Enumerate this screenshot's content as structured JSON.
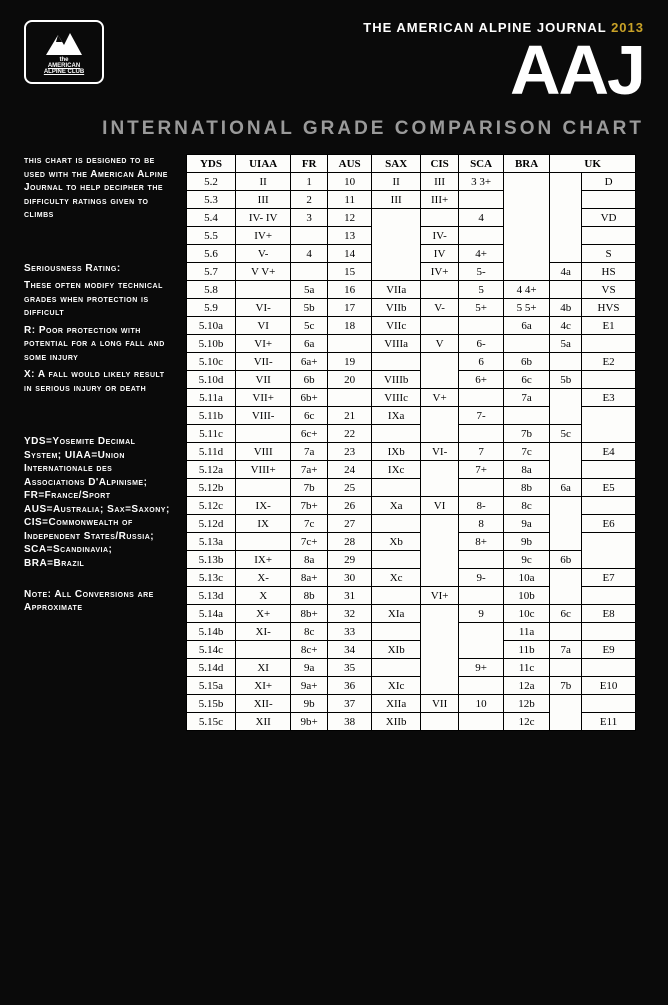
{
  "header": {
    "journal_text": "THE AMERICAN ALPINE JOURNAL",
    "year": "2013",
    "aaj": "AAJ",
    "logo_line1": "the",
    "logo_line2": "AMERICAN",
    "logo_line3": "ALPINE CLUB"
  },
  "subtitle": "INTERNATIONAL GRADE COMPARISON CHART",
  "sidebar": {
    "intro": "this chart is designed to be used with the American Alpine Journal to help decipher the difficulty ratings given to climbs",
    "seriousness_head": "Seriousness Rating:",
    "seriousness_body": "These often modify technical grades when protection is difficult",
    "r_def": "R: Poor protection with potential for a long fall and some injury",
    "x_def": "X: A fall would likely result in serious injury or death",
    "legend1": "YDS=Yosemite Decimal System; UIAA=Union Internationale des Associations D'Alpinisme; FR=France/Sport AUS=Australia; Sax=Saxony; CIS=Commonwealth of Independent States/Russia; SCA=Scandinavia; BRA=Brazil",
    "note": "Note: All Conversions are Approximate"
  },
  "chart": {
    "headers": [
      "YDS",
      "UIAA",
      "FR",
      "AUS",
      "SAX",
      "CIS",
      "SCA",
      "BRA",
      "UK"
    ],
    "uk_header_span": 2,
    "background_color": "#fdfdfb",
    "border_color": "#000000",
    "font_family": "Times New Roman",
    "font_size_pt": 8
  },
  "labels": {
    "yds": [
      "5.2",
      "5.3",
      "5.4",
      "5.5",
      "5.6",
      "5.7",
      "5.8",
      "5.9",
      "5.10a",
      "5.10b",
      "5.10c",
      "5.10d",
      "5.11a",
      "5.11b",
      "5.11c",
      "5.11d",
      "5.12a",
      "5.12b",
      "5.12c",
      "5.12d",
      "5.13a",
      "5.13b",
      "5.13c",
      "5.13d",
      "5.14a",
      "5.14b",
      "5.14c",
      "5.14d",
      "5.15a",
      "5.15b",
      "5.15c"
    ],
    "fr": [
      "1",
      "2",
      "3",
      "",
      "4",
      "",
      "5a",
      "5b",
      "5c",
      "6a",
      "6a+",
      "6b",
      "6b+",
      "6c",
      "6c+",
      "7a",
      "7a+",
      "7b",
      "7b+",
      "7c",
      "7c+",
      "8a",
      "8a+",
      "8b",
      "8b+",
      "8c",
      "8c+",
      "9a",
      "9a+",
      "9b",
      "9b+"
    ],
    "aus": [
      "10",
      "11",
      "12",
      "13",
      "14",
      "15",
      "16",
      "17",
      "18",
      "",
      "19",
      "20",
      "",
      "21",
      "22",
      "23",
      "24",
      "25",
      "26",
      "27",
      "28",
      "29",
      "30",
      "31",
      "32",
      "33",
      "34",
      "35",
      "36",
      "37",
      "38"
    ],
    "bra": [
      "",
      "",
      "",
      "",
      "",
      "",
      "4 4+",
      "5 5+",
      "6a",
      "",
      "6b",
      "6c",
      "7a",
      "",
      "7b",
      "7c",
      "8a",
      "8b",
      "8c",
      "9a",
      "9b",
      "9c",
      "10a",
      "10b",
      "10c",
      "11a",
      "11b",
      "11c",
      "12a",
      "12b",
      "12c"
    ],
    "uiaa": [
      "II",
      "III",
      "IV- IV",
      "IV+",
      "V-",
      "V V+",
      "",
      "VI-",
      "VI",
      "VI+",
      "VII-",
      "VII",
      "VII+",
      "VIII-",
      "",
      "VIII",
      "VIII+",
      "",
      "IX-",
      "IX",
      "",
      "IX+",
      "X-",
      "X",
      "X+",
      "XI-",
      "",
      "XI",
      "XI+",
      "XII-",
      "XII"
    ],
    "sax": [
      "II",
      "III",
      "",
      "",
      "",
      "",
      "VIIa",
      "VIIb",
      "VIIc",
      "VIIIa",
      "",
      "VIIIb",
      "VIIIc",
      "IXa",
      "",
      "IXb",
      "IXc",
      "",
      "Xa",
      "",
      "Xb",
      "",
      "Xc",
      "",
      "XIa",
      "",
      "XIb",
      "",
      "XIc",
      "XIIa",
      "XIIb"
    ],
    "cis": [
      "III",
      "III+",
      "",
      "IV-",
      "IV",
      "IV+",
      "",
      "V-",
      "",
      "V",
      "",
      "",
      "V+",
      "",
      "",
      "VI-",
      "",
      "",
      "VI",
      "",
      "",
      "",
      "",
      "VI+",
      "",
      "",
      "",
      "",
      "",
      "VII",
      ""
    ],
    "sca": [
      "3 3+",
      "",
      "4",
      "",
      "4+",
      "5-",
      "5",
      "5+",
      "",
      "6-",
      "6",
      "6+",
      "",
      "7-",
      "",
      "7",
      "7+",
      "",
      "8-",
      "8",
      "8+",
      "",
      "9-",
      "",
      "9",
      "",
      "",
      "9+",
      "",
      "10",
      ""
    ],
    "uk1": [
      "",
      "",
      "",
      "",
      "",
      "4a",
      "",
      "4b",
      "4c",
      "5a",
      "",
      "5b",
      "",
      "",
      "5c",
      "",
      "",
      "6a",
      "",
      "",
      "",
      "6b",
      "",
      "",
      "6c",
      "",
      "7a",
      "",
      "7b",
      "",
      ""
    ],
    "uk2": [
      "D",
      "",
      "VD",
      "",
      "S",
      "HS",
      "VS",
      "HVS",
      "E1",
      "",
      "E2",
      "",
      "E3",
      "",
      "",
      "E4",
      "",
      "E5",
      "",
      "E6",
      "",
      "",
      "E7",
      "",
      "E8",
      "",
      "E9",
      "",
      "E10",
      "",
      "E11"
    ]
  }
}
